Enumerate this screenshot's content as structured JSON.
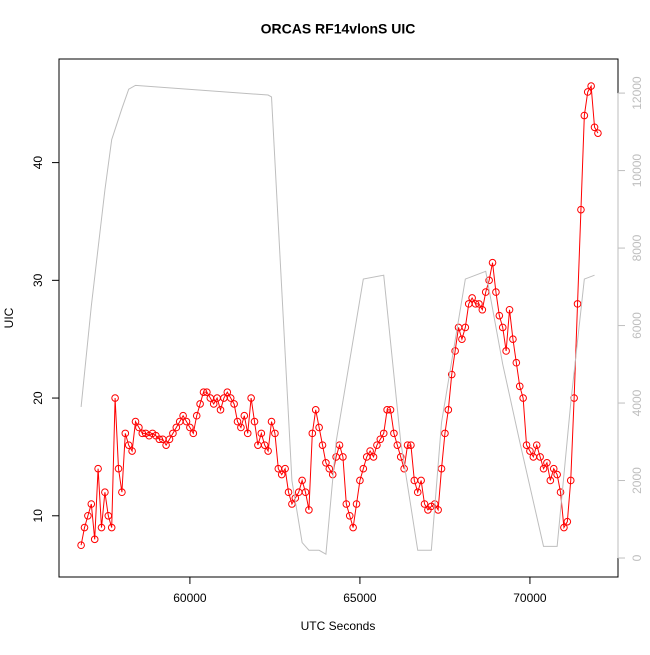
{
  "chart_data": {
    "type": "line",
    "title": "ORCAS RF14vlonS UIC",
    "xlabel": "UTC Seconds",
    "ylabel": "UIC",
    "xlim": [
      56150,
      72590
    ],
    "ylim": [
      4.8,
      48.8
    ],
    "y2lim": [
      -490,
      12880
    ],
    "xticks": [
      60000,
      65000,
      70000
    ],
    "yticks": [
      10,
      20,
      30,
      40
    ],
    "y2ticks": [
      0,
      2000,
      4000,
      6000,
      8000,
      10000,
      12000
    ],
    "series": [
      {
        "color": "#ff0000",
        "marker": "circle",
        "x": [
          56800,
          56900,
          57000,
          57100,
          57200,
          57300,
          57400,
          57500,
          57600,
          57700,
          57800,
          57900,
          58000,
          58100,
          58200,
          58300,
          58400,
          58500,
          58600,
          58700,
          58800,
          58900,
          59000,
          59100,
          59200,
          59300,
          59400,
          59500,
          59600,
          59700,
          59800,
          59900,
          60000,
          60100,
          60200,
          60300,
          60400,
          60500,
          60600,
          60700,
          60800,
          60900,
          61000,
          61100,
          61200,
          61300,
          61400,
          61500,
          61600,
          61700,
          61800,
          61900,
          62000,
          62100,
          62200,
          62300,
          62400,
          62500,
          62600,
          62700,
          62800,
          62900,
          63000,
          63100,
          63200,
          63300,
          63400,
          63500,
          63600,
          63700,
          63800,
          63900,
          64000,
          64100,
          64200,
          64300,
          64400,
          64500,
          64600,
          64700,
          64800,
          64900,
          65000,
          65100,
          65200,
          65300,
          65400,
          65500,
          65600,
          65700,
          65800,
          65900,
          66000,
          66100,
          66200,
          66300,
          66400,
          66500,
          66600,
          66700,
          66800,
          66900,
          67000,
          67100,
          67200,
          67300,
          67400,
          67500,
          67600,
          67700,
          67800,
          67900,
          68000,
          68100,
          68200,
          68300,
          68400,
          68500,
          68600,
          68700,
          68800,
          68900,
          69000,
          69100,
          69200,
          69300,
          69400,
          69500,
          69600,
          69700,
          69800,
          69900,
          70000,
          70100,
          70200,
          70300,
          70400,
          70500,
          70600,
          70700,
          70800,
          70900,
          71000,
          71100,
          71200,
          71300,
          71400,
          71500,
          71600,
          71700,
          71800,
          71900,
          72000
        ],
        "values": [
          7.5,
          9,
          10,
          11,
          8,
          14,
          9,
          12,
          10,
          9,
          20,
          14,
          12,
          17,
          16,
          15.5,
          18,
          17.5,
          17,
          17,
          16.8,
          17,
          16.8,
          16.5,
          16.5,
          16,
          16.5,
          17,
          17.5,
          18,
          18.5,
          18,
          17.5,
          17,
          18.5,
          19.5,
          20.5,
          20.5,
          20,
          19.5,
          20,
          19,
          20,
          20.5,
          20,
          19.5,
          18,
          17.5,
          18.5,
          17,
          20,
          18,
          16,
          17,
          16,
          15.5,
          18,
          17,
          14,
          13.5,
          14,
          12,
          11,
          11.5,
          12,
          13,
          12,
          10.5,
          17,
          19,
          17.5,
          16,
          14.5,
          14,
          13.5,
          15,
          16,
          15,
          11,
          10,
          9,
          11,
          13,
          14,
          15,
          15.5,
          15,
          16,
          16.5,
          17,
          19,
          19,
          17,
          16,
          15,
          14,
          16,
          16,
          13,
          12,
          13,
          11,
          10.5,
          10.8,
          11,
          10.5,
          14,
          17,
          19,
          22,
          24,
          26,
          25,
          26,
          28,
          28.5,
          28,
          28,
          27.5,
          29,
          30,
          31.5,
          29,
          27,
          26,
          24,
          27.5,
          25,
          23,
          21,
          20,
          16,
          15.5,
          15,
          16,
          15,
          14,
          14.5,
          13,
          14,
          13.5,
          12,
          9,
          9.5,
          13,
          20,
          28,
          36,
          44,
          46,
          46.5,
          43,
          42.5
        ]
      },
      {
        "color": "#bebebe",
        "axis": "y2",
        "x": [
          56800,
          57100,
          57500,
          57700,
          58000,
          58200,
          58400,
          62300,
          62400,
          63000,
          63300,
          63500,
          63800,
          64000,
          64300,
          65100,
          65700,
          66200,
          66700,
          67100,
          67400,
          68100,
          68700,
          69200,
          69700,
          70400,
          70800,
          71200,
          71600,
          71900
        ],
        "values": [
          3900,
          6500,
          9500,
          10800,
          11600,
          12100,
          12200,
          11950,
          11900,
          2000,
          400,
          200,
          200,
          100,
          3000,
          7200,
          7300,
          3000,
          200,
          200,
          3500,
          7200,
          7400,
          5000,
          3000,
          300,
          300,
          4000,
          7200,
          7300
        ]
      }
    ]
  }
}
